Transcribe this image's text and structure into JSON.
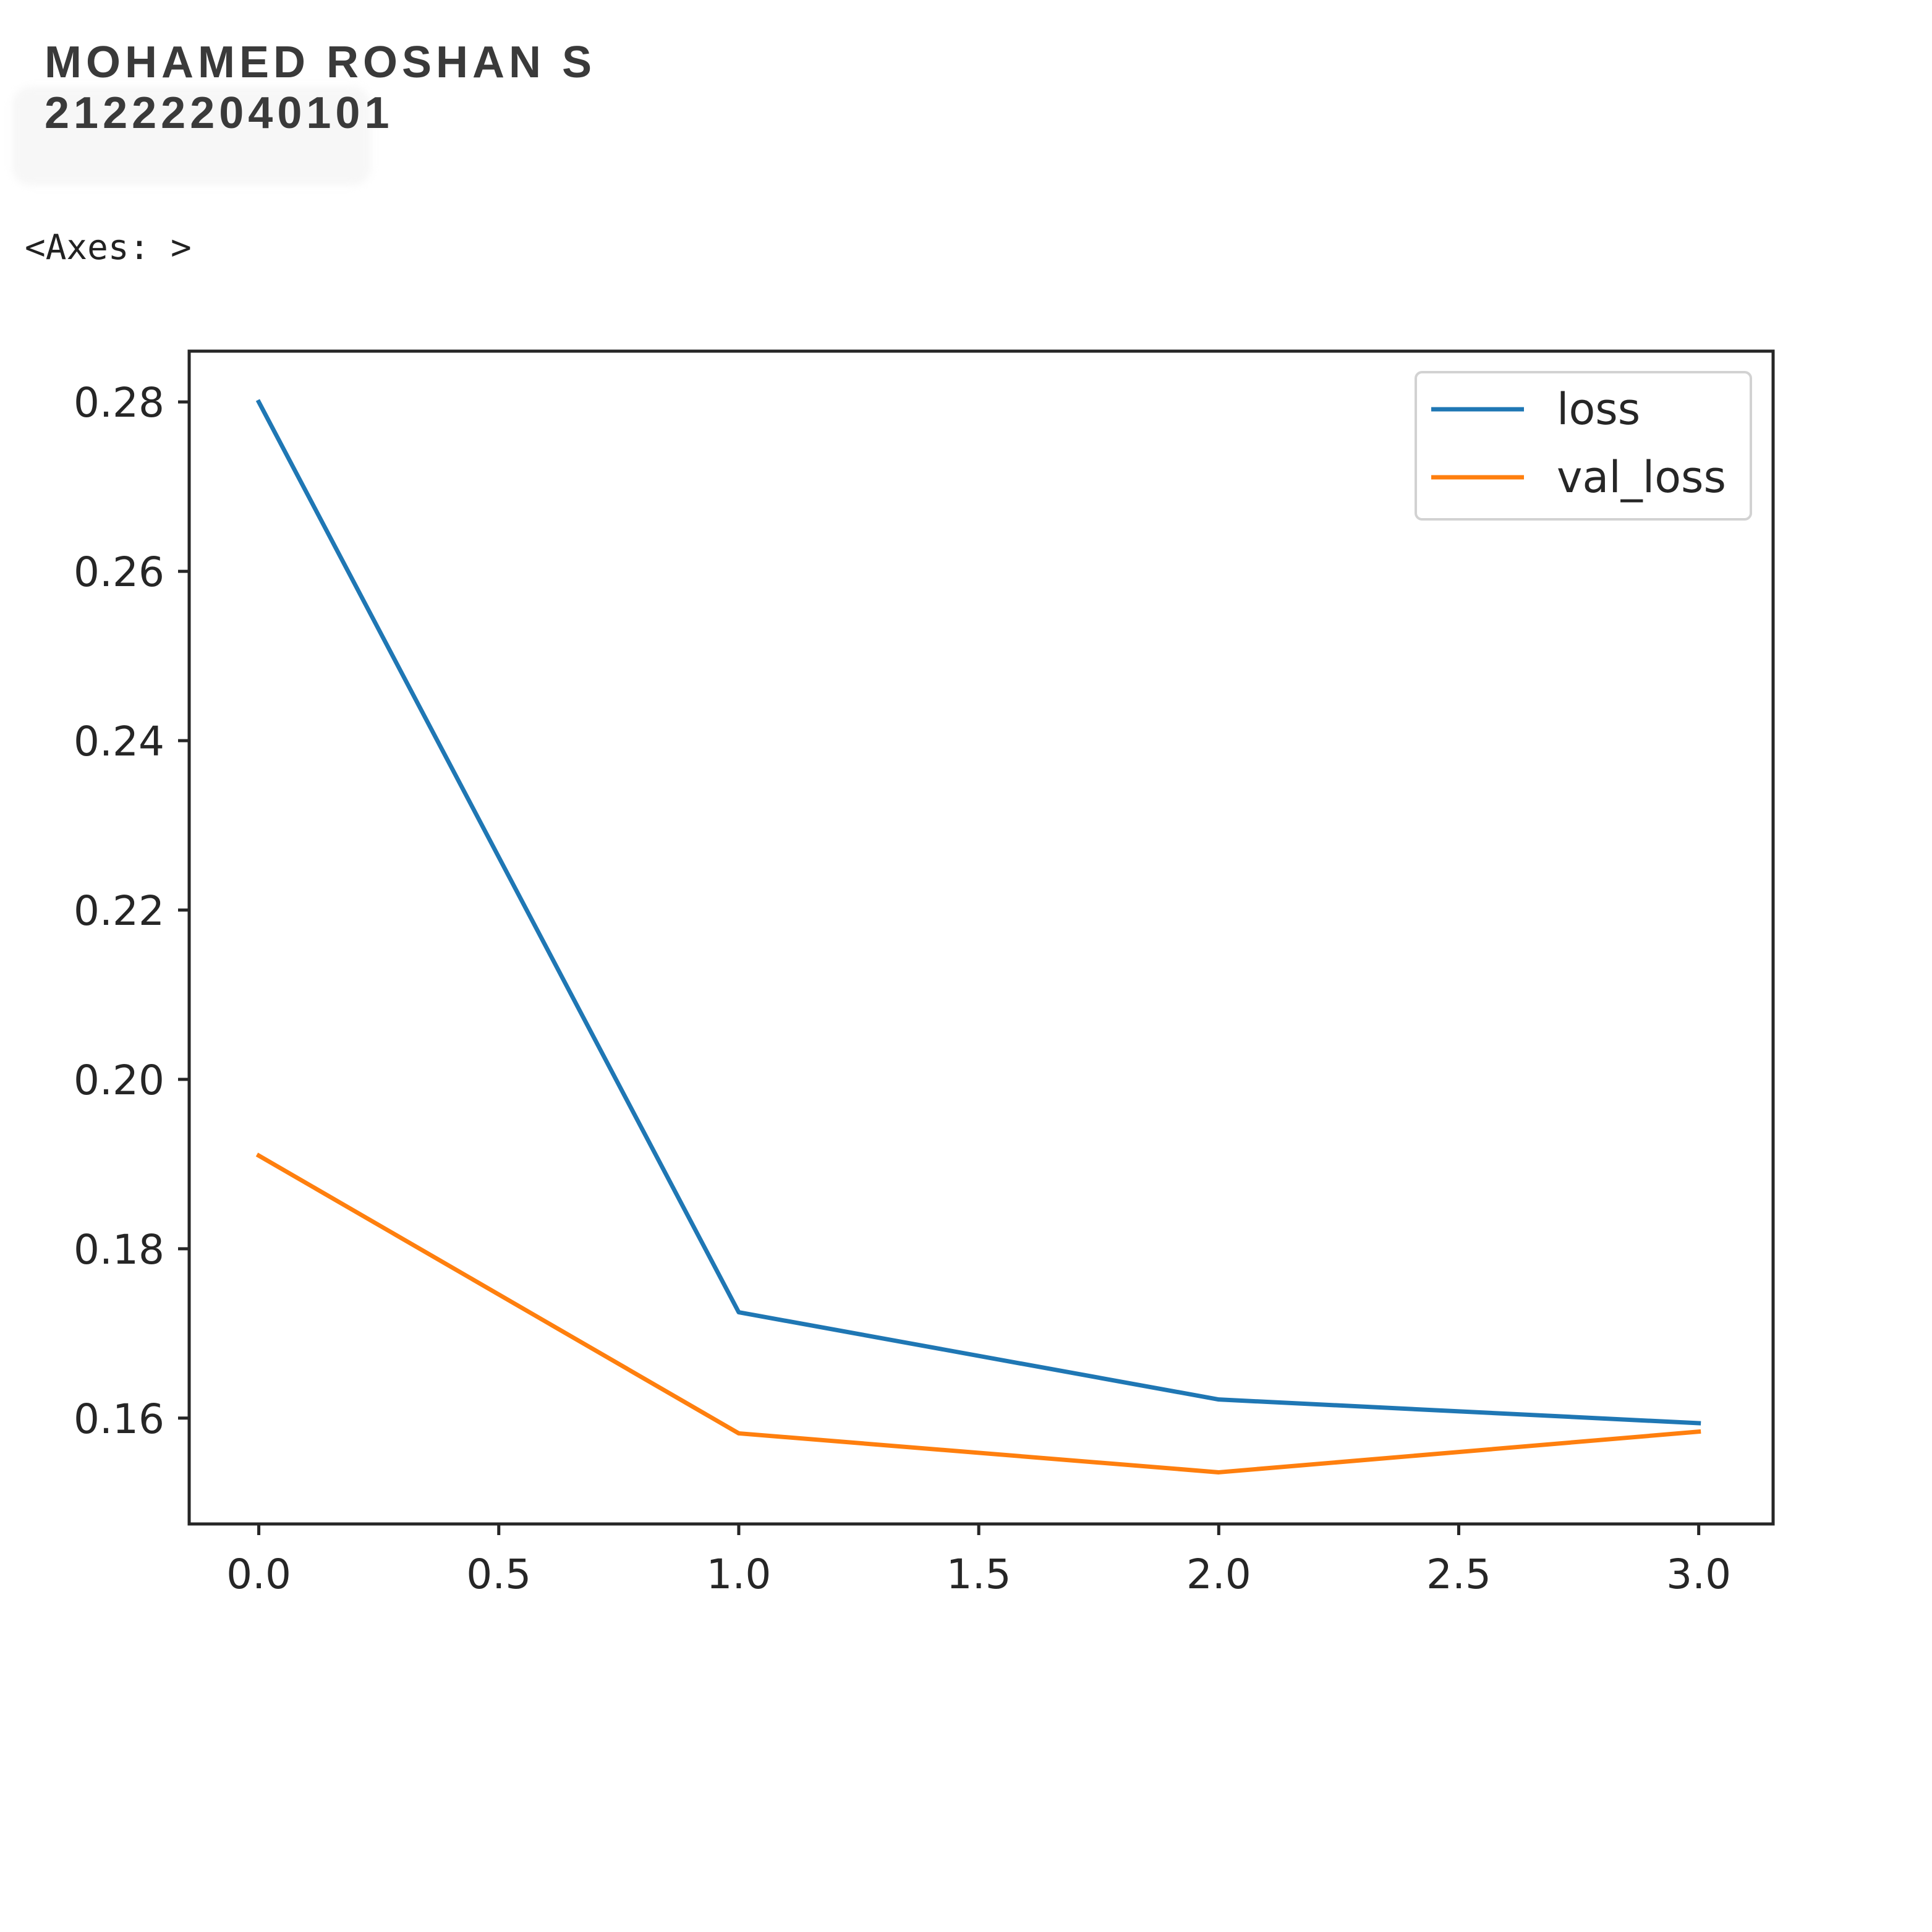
{
  "header": {
    "name": "MOHAMED ROSHAN S",
    "id": "212222040101"
  },
  "output_repr": "<Axes: >",
  "chart_data": {
    "type": "line",
    "x": [
      0,
      1,
      2,
      3
    ],
    "series": [
      {
        "name": "loss",
        "values": [
          0.28,
          0.1725,
          0.1622,
          0.1594
        ],
        "color": "#1f77b4"
      },
      {
        "name": "val_loss",
        "values": [
          0.191,
          0.1582,
          0.1536,
          0.1584
        ],
        "color": "#ff7f0e"
      }
    ],
    "xlim": [
      -0.145,
      3.155
    ],
    "ylim": [
      0.1475,
      0.286
    ],
    "xticks": [
      0.0,
      0.5,
      1.0,
      1.5,
      2.0,
      2.5,
      3.0
    ],
    "xtick_labels": [
      "0.0",
      "0.5",
      "1.0",
      "1.5",
      "2.0",
      "2.5",
      "3.0"
    ],
    "yticks": [
      0.16,
      0.18,
      0.2,
      0.22,
      0.24,
      0.26,
      0.28
    ],
    "ytick_labels": [
      "0.16",
      "0.18",
      "0.20",
      "0.22",
      "0.24",
      "0.26",
      "0.28"
    ],
    "legend_placement": "top-right",
    "grid": false,
    "title": "",
    "xlabel": "",
    "ylabel": ""
  }
}
